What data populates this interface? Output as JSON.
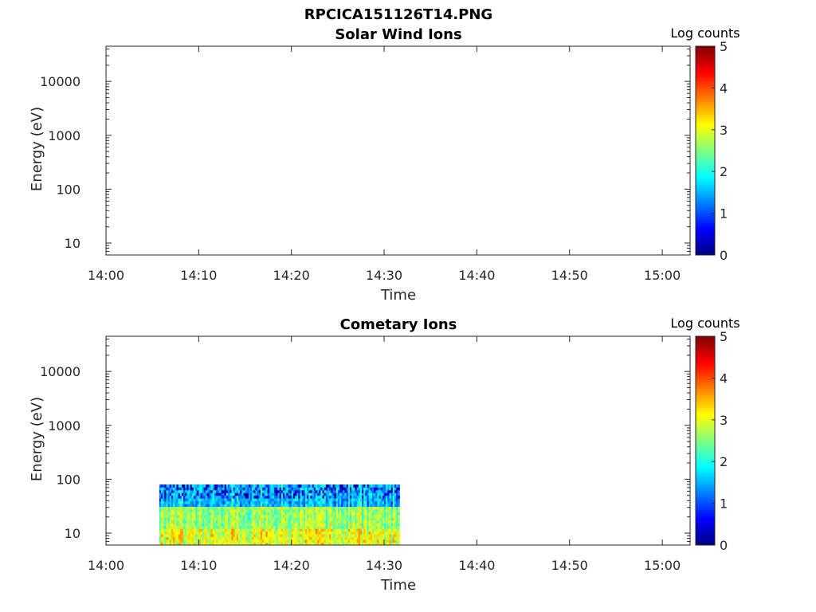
{
  "figure_title": "RPCICA151126T14.PNG",
  "chart_data": [
    {
      "type": "heatmap",
      "title": "Solar Wind Ions",
      "xlabel": "Time",
      "ylabel": "Energy (eV)",
      "x_range": [
        "14:00",
        "15:03"
      ],
      "x_ticks": [
        "14:00",
        "14:10",
        "14:20",
        "14:30",
        "14:40",
        "14:50",
        "15:00"
      ],
      "y_scale": "log",
      "y_range": [
        6,
        45000
      ],
      "y_ticks": [
        "10",
        "100",
        "1000",
        "10000"
      ],
      "colorbar": {
        "label": "Log counts",
        "min": 0,
        "max": 5,
        "ticks": [
          "0",
          "1",
          "2",
          "3",
          "4",
          "5"
        ],
        "colormap": "jet"
      },
      "data": []
    },
    {
      "type": "heatmap",
      "title": "Cometary Ions",
      "xlabel": "Time",
      "ylabel": "Energy (eV)",
      "x_range": [
        "14:00",
        "15:03"
      ],
      "x_ticks": [
        "14:00",
        "14:10",
        "14:20",
        "14:30",
        "14:40",
        "14:50",
        "15:00"
      ],
      "y_scale": "log",
      "y_range": [
        6,
        45000
      ],
      "y_ticks": [
        "10",
        "100",
        "1000",
        "10000"
      ],
      "colorbar": {
        "label": "Log counts",
        "min": 0,
        "max": 5,
        "ticks": [
          "0",
          "1",
          "2",
          "3",
          "4",
          "5"
        ],
        "colormap": "jet"
      },
      "data": [
        {
          "energy_range_eV": [
            6,
            80
          ],
          "time_range": [
            "14:05:45",
            "14:31:40"
          ],
          "description_levels": [
            {
              "energy_range_eV": [
                6,
                12
              ],
              "log_counts_approx": 3.0
            },
            {
              "energy_range_eV": [
                12,
                30
              ],
              "log_counts_approx": 2.6
            },
            {
              "energy_range_eV": [
                30,
                80
              ],
              "log_counts_approx": 1.5
            }
          ]
        }
      ]
    }
  ]
}
